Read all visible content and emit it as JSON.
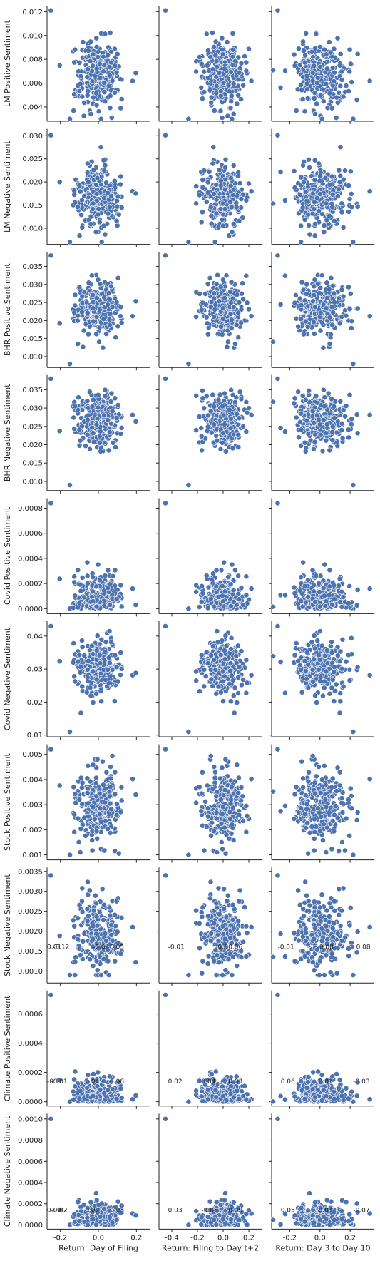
{
  "chart_data": {
    "type": "scatter",
    "grid": false,
    "point_color": "#4c72b0",
    "columns": [
      {
        "xlabel": "Return: Day of Filing",
        "xlim": [
          -0.27,
          0.27
        ],
        "xticks": [
          "-0.2",
          "0.0",
          "0.2"
        ],
        "xtick_values": [
          -0.2,
          0.0,
          0.2
        ],
        "spread": 0.06,
        "outliers": [
          -0.25,
          -0.15,
          0.18
        ]
      },
      {
        "xlabel": "Return: Filing to Day t+2",
        "xlim": [
          -0.5,
          0.3
        ],
        "xticks": [
          "-0.4",
          "-0.2",
          "0.0",
          "0.2"
        ],
        "xtick_values": [
          -0.4,
          -0.2,
          0.0,
          0.2
        ],
        "spread": 0.08,
        "outliers": [
          -0.45,
          -0.27,
          0.22
        ]
      },
      {
        "xlabel": "Return: Day 3 to Day 10",
        "xlim": [
          -0.32,
          0.36
        ],
        "xticks": [
          "-0.2",
          "0.0",
          "0.2"
        ],
        "xtick_values": [
          -0.2,
          0.0,
          0.2
        ],
        "spread": 0.09,
        "outliers": [
          -0.28,
          0.22,
          0.33
        ]
      }
    ],
    "rows": [
      {
        "ylabel": "LM Positive Sentiment",
        "ylim": [
          0.0028,
          0.0125
        ],
        "yticks": [
          "0.004",
          "0.006",
          "0.008",
          "0.010",
          "0.012"
        ],
        "ytick_values": [
          0.004,
          0.006,
          0.008,
          0.01,
          0.012
        ],
        "center": 0.0068,
        "sd": 0.0014,
        "min": 0.003,
        "max": 0.0121
      },
      {
        "ylabel": "LM Negative Sentiment",
        "ylim": [
          0.0065,
          0.0315
        ],
        "yticks": [
          "0.010",
          "0.015",
          "0.020",
          "0.025",
          "0.030"
        ],
        "ytick_values": [
          0.01,
          0.015,
          0.02,
          0.025,
          0.03
        ],
        "center": 0.0165,
        "sd": 0.0035,
        "min": 0.007,
        "max": 0.0301
      },
      {
        "ylabel": "BHR Positive Sentiment",
        "ylim": [
          0.007,
          0.039
        ],
        "yticks": [
          "0.010",
          "0.015",
          "0.020",
          "0.025",
          "0.030",
          "0.035"
        ],
        "ytick_values": [
          0.01,
          0.015,
          0.02,
          0.025,
          0.03,
          0.035
        ],
        "center": 0.0235,
        "sd": 0.0038,
        "min": 0.008,
        "max": 0.038
      },
      {
        "ylabel": "BHR Negative Sentiment",
        "ylim": [
          0.0075,
          0.039
        ],
        "yticks": [
          "0.010",
          "0.015",
          "0.020",
          "0.025",
          "0.030",
          "0.035"
        ],
        "ytick_values": [
          0.01,
          0.015,
          0.02,
          0.025,
          0.03,
          0.035
        ],
        "center": 0.0265,
        "sd": 0.0037,
        "min": 0.009,
        "max": 0.038
      },
      {
        "ylabel": "Covid Positive Sentiment",
        "ylim": [
          -4e-05,
          0.00088
        ],
        "yticks": [
          "0.0000",
          "0.0002",
          "0.0004",
          "0.0006",
          "0.0008"
        ],
        "ytick_values": [
          0.0,
          0.0002,
          0.0004,
          0.0006,
          0.0008
        ],
        "center": 0.00018,
        "sd": 0.00013,
        "min": 0.0,
        "max": 0.00084
      },
      {
        "ylabel": "Covid Negative Sentiment",
        "ylim": [
          0.0095,
          0.0445
        ],
        "yticks": [
          "0.01",
          "0.02",
          "0.03",
          "0.04"
        ],
        "ytick_values": [
          0.01,
          0.02,
          0.03,
          0.04
        ],
        "center": 0.031,
        "sd": 0.0038,
        "min": 0.011,
        "max": 0.043
      },
      {
        "ylabel": "Stock Positive Sentiment",
        "ylim": [
          0.0008,
          0.0054
        ],
        "yticks": [
          "0.001",
          "0.002",
          "0.003",
          "0.004",
          "0.005"
        ],
        "ytick_values": [
          0.001,
          0.002,
          0.003,
          0.004,
          0.005
        ],
        "center": 0.0029,
        "sd": 0.0007,
        "min": 0.001,
        "max": 0.0052
      },
      {
        "ylabel": "Stock Negative Sentiment",
        "ylim": [
          0.0007,
          0.0036
        ],
        "yticks": [
          "0.0010",
          "0.0015",
          "0.0020",
          "0.0025",
          "0.0030",
          "0.0035"
        ],
        "ytick_values": [
          0.001,
          0.0015,
          0.002,
          0.0025,
          0.003,
          0.0035
        ],
        "center": 0.0019,
        "sd": 0.00045,
        "min": 0.0009,
        "max": 0.0034
      },
      {
        "ylabel": "Climate Positive Sentiment",
        "ylim": [
          -3e-05,
          0.00076
        ],
        "yticks": [
          "0.0000",
          "0.0002",
          "0.0004",
          "0.0006"
        ],
        "ytick_values": [
          0.0,
          0.0002,
          0.0004,
          0.0006
        ],
        "center": 2e-05,
        "sd": 8e-05,
        "min": 0.0,
        "max": 0.00073
      },
      {
        "ylabel": "Climate Negative Sentiment",
        "ylim": [
          -4e-05,
          0.00105
        ],
        "yticks": [
          "0.0000",
          "0.0002",
          "0.0004",
          "0.0006",
          "0.0008",
          "0.0010"
        ],
        "ytick_values": [
          0.0,
          0.0002,
          0.0004,
          0.0006,
          0.0008,
          0.001
        ],
        "center": 3e-05,
        "sd": 0.0001,
        "min": 0.0,
        "max": 0.001
      }
    ],
    "annotations": [
      {
        "row": 7,
        "col": 0,
        "items": [
          {
            "x": -0.27,
            "text": "0.01"
          },
          {
            "x": -0.24,
            "text": "-0.12"
          },
          {
            "x": -0.03,
            "text": "-0.04"
          },
          {
            "x": 0.06,
            "text": "0.05"
          }
        ]
      },
      {
        "row": 7,
        "col": 1,
        "items": [
          {
            "x": -0.43,
            "text": "-0.01"
          },
          {
            "x": -0.06,
            "text": "-0.0"
          },
          {
            "x": 0.04,
            "text": "0.06"
          }
        ]
      },
      {
        "row": 7,
        "col": 2,
        "items": [
          {
            "x": -0.28,
            "text": "-0.01"
          },
          {
            "x": -0.02,
            "text": "-0.08"
          },
          {
            "x": 0.24,
            "text": "0.08"
          }
        ]
      },
      {
        "row": 8,
        "col": 0,
        "items": [
          {
            "x": -0.27,
            "text": "-0.1"
          },
          {
            "x": -0.25,
            "text": "-0.01"
          },
          {
            "x": -0.07,
            "text": "0.04"
          },
          {
            "x": 0.06,
            "text": "0.08"
          }
        ]
      },
      {
        "row": 8,
        "col": 1,
        "items": [
          {
            "x": -0.43,
            "text": "0.02"
          },
          {
            "x": -0.17,
            "text": "0.04"
          },
          {
            "x": 0.04,
            "text": "0.03"
          }
        ]
      },
      {
        "row": 8,
        "col": 2,
        "items": [
          {
            "x": -0.26,
            "text": "0.06"
          },
          {
            "x": -0.01,
            "text": "0.01"
          },
          {
            "x": 0.22,
            "text": "-0.03"
          }
        ]
      },
      {
        "row": 9,
        "col": 0,
        "items": [
          {
            "x": -0.27,
            "text": "0.02"
          },
          {
            "x": -0.25,
            "text": "-0.02"
          },
          {
            "x": -0.07,
            "text": "0.02"
          },
          {
            "x": 0.06,
            "text": "0.03"
          }
        ]
      },
      {
        "row": 9,
        "col": 1,
        "items": [
          {
            "x": -0.43,
            "text": "0.03"
          },
          {
            "x": -0.17,
            "text": "-0.06"
          },
          {
            "x": 0.04,
            "text": "0.09"
          }
        ]
      },
      {
        "row": 9,
        "col": 2,
        "items": [
          {
            "x": -0.26,
            "text": "0.05"
          },
          {
            "x": -0.01,
            "text": "0.01"
          },
          {
            "x": 0.22,
            "text": "-0.07"
          }
        ]
      }
    ],
    "annotation_y": {
      "7": 0.00155,
      "8": 0.000125,
      "9": 0.00012
    }
  }
}
